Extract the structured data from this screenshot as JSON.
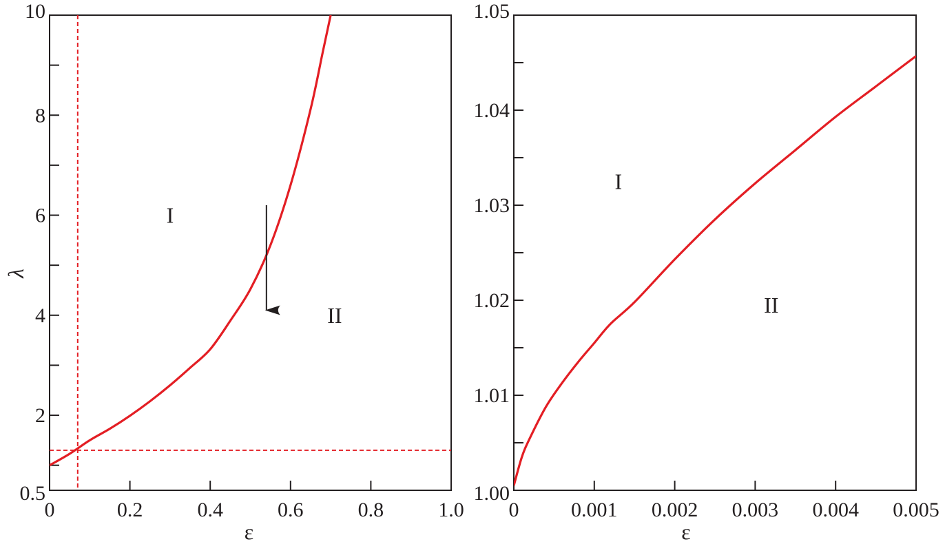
{
  "chart_data": [
    {
      "type": "line",
      "panel": "left",
      "xlabel": "ε",
      "ylabel": "λ",
      "xlim": [
        0,
        1.0
      ],
      "ylim": [
        0.5,
        10
      ],
      "x_ticks": [
        0,
        0.2,
        0.4,
        0.6,
        0.8,
        1.0
      ],
      "x_tick_labels": [
        "0",
        "0.2",
        "0.4",
        "0.6",
        "0.8",
        "1.0"
      ],
      "y_ticks": [
        0.5,
        2,
        4,
        6,
        8,
        10
      ],
      "y_tick_labels": [
        "0.5",
        "2",
        "4",
        "6",
        "8",
        "10"
      ],
      "y_minor_ticks": [
        1,
        3,
        5,
        7,
        9
      ],
      "grid": false,
      "series": [
        {
          "color": "#e31e24",
          "style": "solid",
          "x": [
            0,
            0.05,
            0.1,
            0.15,
            0.2,
            0.25,
            0.3,
            0.35,
            0.4,
            0.45,
            0.5,
            0.55,
            0.6,
            0.65,
            0.68,
            0.7
          ],
          "y": [
            1.0,
            1.23,
            1.5,
            1.73,
            1.99,
            2.28,
            2.6,
            2.95,
            3.32,
            3.89,
            4.52,
            5.4,
            6.6,
            8.12,
            9.25,
            10.0
          ]
        }
      ],
      "reference_lines": {
        "color": "#e31e24",
        "style": "dashed",
        "vertical_x": 0.07,
        "horizontal_y": 1.3
      },
      "arrow": {
        "x": 0.54,
        "y_from": 6.2,
        "y_to": 4.1,
        "color": "#231f20"
      },
      "annotations": [
        {
          "text": "I",
          "x": 0.3,
          "y": 6.0
        },
        {
          "text": "II",
          "x": 0.71,
          "y": 4.0
        }
      ]
    },
    {
      "type": "line",
      "panel": "right",
      "xlabel": "ε",
      "ylabel": "",
      "xlim": [
        0,
        0.005
      ],
      "ylim": [
        1.0,
        1.05
      ],
      "x_ticks": [
        0,
        0.001,
        0.002,
        0.003,
        0.004,
        0.005
      ],
      "x_tick_labels": [
        "0",
        "0.001",
        "0.002",
        "0.003",
        "0.004",
        "0.005"
      ],
      "y_ticks": [
        1.0,
        1.01,
        1.02,
        1.03,
        1.04,
        1.05
      ],
      "y_tick_labels": [
        "1.00",
        "1.01",
        "1.02",
        "1.03",
        "1.04",
        "1.05"
      ],
      "y_minor_ticks": [
        1.005,
        1.015,
        1.025,
        1.035,
        1.045
      ],
      "grid": false,
      "series": [
        {
          "color": "#e31e24",
          "style": "solid",
          "x": [
            0,
            0.0001,
            0.0002,
            0.0004,
            0.0006,
            0.0008,
            0.001,
            0.0012,
            0.0015,
            0.002,
            0.0025,
            0.003,
            0.0035,
            0.004,
            0.0045,
            0.005
          ],
          "y": [
            1.0005,
            1.0035,
            1.0055,
            1.0088,
            1.0113,
            1.0135,
            1.0155,
            1.0175,
            1.0198,
            1.0243,
            1.0285,
            1.0323,
            1.0358,
            1.0393,
            1.0425,
            1.0457
          ]
        }
      ],
      "annotations": [
        {
          "text": "I",
          "x": 0.0013,
          "y": 1.0325
        },
        {
          "text": "II",
          "x": 0.0032,
          "y": 1.0195
        }
      ]
    }
  ]
}
